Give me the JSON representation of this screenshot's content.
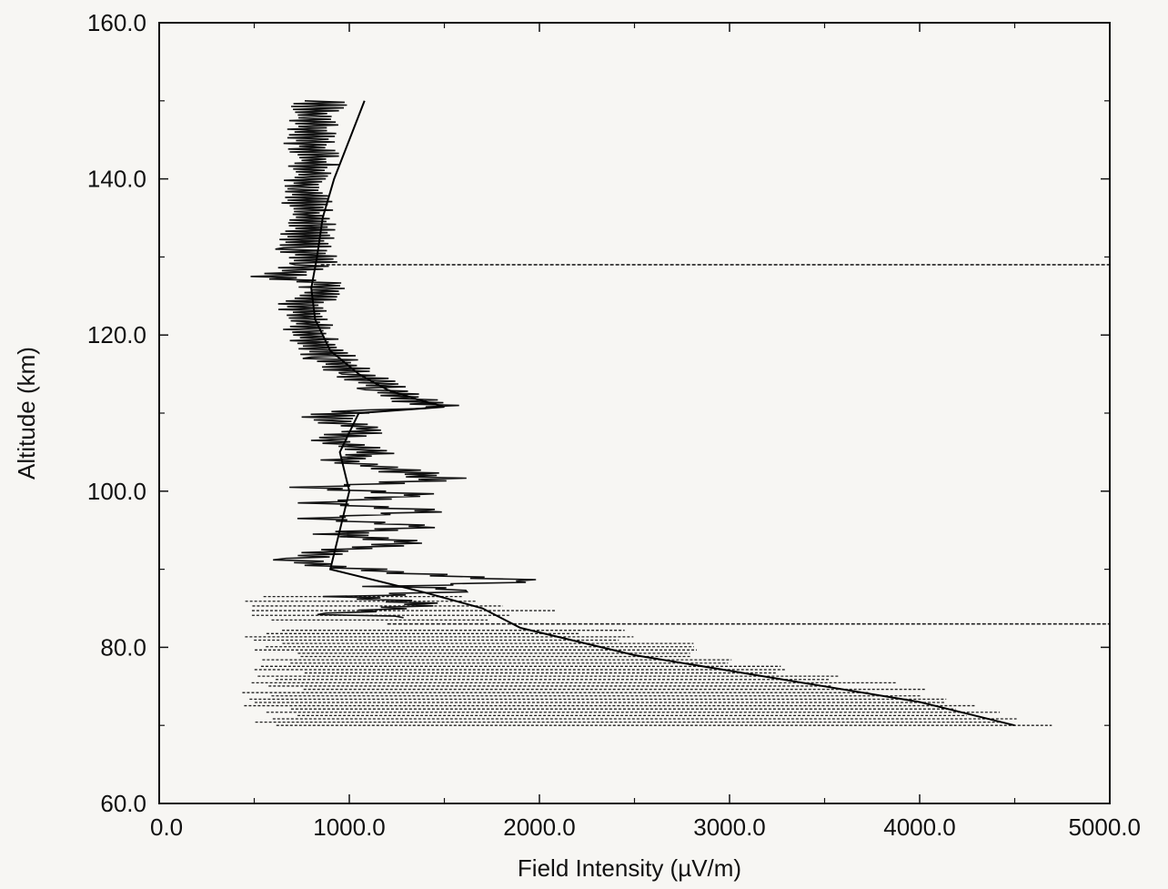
{
  "chart_data": {
    "type": "line",
    "xlabel": "Field Intensity (µV/m)",
    "ylabel": "Altitude (km)",
    "xlim": [
      0,
      5000
    ],
    "ylim": [
      60,
      160
    ],
    "x_ticks": [
      "0.0",
      "1000.0",
      "2000.0",
      "3000.0",
      "4000.0",
      "5000.0"
    ],
    "y_ticks": [
      "60.0",
      "80.0",
      "100.0",
      "120.0",
      "140.0",
      "160.0"
    ],
    "grid": false,
    "legend": "none",
    "series": [
      {
        "style": "measured-ragged",
        "points": [
          {
            "x": 850,
            "y": 150
          },
          {
            "x": 780,
            "y": 146
          },
          {
            "x": 820,
            "y": 142
          },
          {
            "x": 760,
            "y": 138
          },
          {
            "x": 790,
            "y": 134
          },
          {
            "x": 760,
            "y": 131
          },
          {
            "x": 820,
            "y": 129
          },
          {
            "x": 600,
            "y": 127.5
          },
          {
            "x": 900,
            "y": 126.5
          },
          {
            "x": 760,
            "y": 124
          },
          {
            "x": 800,
            "y": 120
          },
          {
            "x": 900,
            "y": 117
          },
          {
            "x": 1050,
            "y": 115
          },
          {
            "x": 1200,
            "y": 113
          },
          {
            "x": 1350,
            "y": 111.5
          },
          {
            "x": 1500,
            "y": 110.8
          },
          {
            "x": 1000,
            "y": 110.2
          },
          {
            "x": 850,
            "y": 109.5
          },
          {
            "x": 1100,
            "y": 108
          },
          {
            "x": 900,
            "y": 106.5
          },
          {
            "x": 1150,
            "y": 105
          },
          {
            "x": 950,
            "y": 104
          },
          {
            "x": 1300,
            "y": 102.5
          },
          {
            "x": 1500,
            "y": 101.5
          },
          {
            "x": 800,
            "y": 100.5
          },
          {
            "x": 1400,
            "y": 99.5
          },
          {
            "x": 800,
            "y": 98.5
          },
          {
            "x": 1450,
            "y": 97.5
          },
          {
            "x": 800,
            "y": 96.5
          },
          {
            "x": 1400,
            "y": 95.5
          },
          {
            "x": 900,
            "y": 94.5
          },
          {
            "x": 1350,
            "y": 93.5
          },
          {
            "x": 950,
            "y": 92.5
          },
          {
            "x": 700,
            "y": 91.2
          },
          {
            "x": 850,
            "y": 90.5
          },
          {
            "x": 1300,
            "y": 89.5
          },
          {
            "x": 2000,
            "y": 88.5
          },
          {
            "x": 1200,
            "y": 87.8
          },
          {
            "x": 1700,
            "y": 87.3
          },
          {
            "x": 1000,
            "y": 86.5
          },
          {
            "x": 1400,
            "y": 85.5
          },
          {
            "x": 900,
            "y": 84.2
          },
          {
            "x": 1600,
            "y": 83.6
          }
        ]
      },
      {
        "style": "smooth-profile",
        "points": [
          {
            "x": 1080,
            "y": 150
          },
          {
            "x": 1000,
            "y": 145
          },
          {
            "x": 920,
            "y": 140
          },
          {
            "x": 860,
            "y": 135
          },
          {
            "x": 830,
            "y": 130
          },
          {
            "x": 800,
            "y": 126
          },
          {
            "x": 820,
            "y": 122
          },
          {
            "x": 900,
            "y": 118
          },
          {
            "x": 1050,
            "y": 115
          },
          {
            "x": 1200,
            "y": 113
          },
          {
            "x": 1350,
            "y": 111.8
          },
          {
            "x": 1500,
            "y": 110.8
          },
          {
            "x": 1050,
            "y": 110
          },
          {
            "x": 950,
            "y": 105
          },
          {
            "x": 1000,
            "y": 100
          },
          {
            "x": 950,
            "y": 95
          },
          {
            "x": 900,
            "y": 90
          },
          {
            "x": 1400,
            "y": 87
          },
          {
            "x": 1700,
            "y": 85
          },
          {
            "x": 1900,
            "y": 82.5
          },
          {
            "x": 2500,
            "y": 79
          },
          {
            "x": 3000,
            "y": 77
          },
          {
            "x": 3500,
            "y": 75
          },
          {
            "x": 4000,
            "y": 73
          },
          {
            "x": 4500,
            "y": 70
          }
        ]
      },
      {
        "style": "dashed-sweeps",
        "points": [
          {
            "x": 850,
            "y": 129
          },
          {
            "x": 5000,
            "y": 129
          },
          {
            "x": 1200,
            "y": 83
          },
          {
            "x": 5000,
            "y": 83
          }
        ]
      }
    ]
  }
}
